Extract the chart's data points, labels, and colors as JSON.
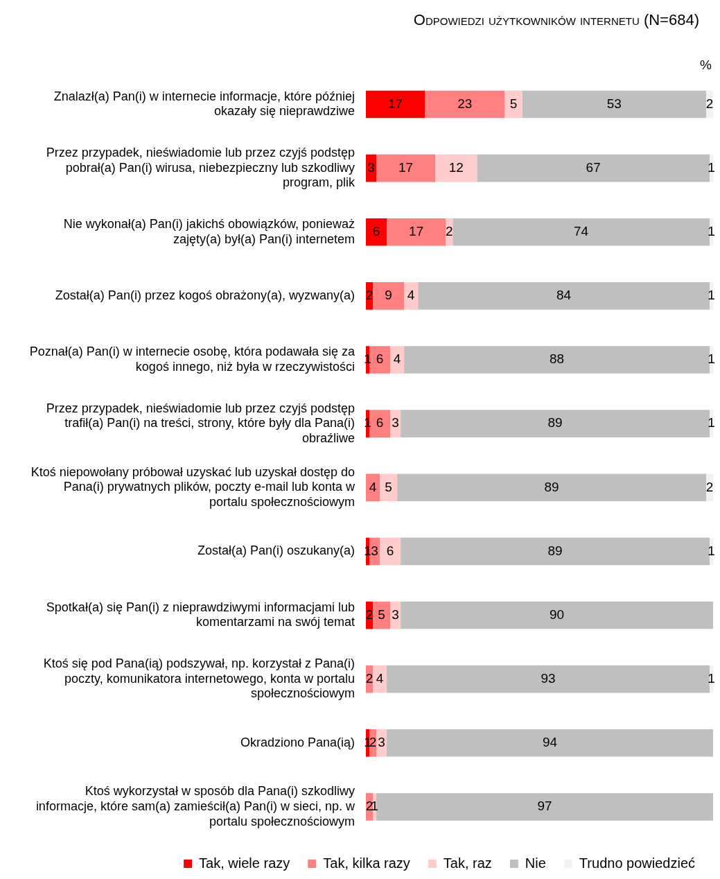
{
  "chart_data": {
    "type": "bar",
    "orientation": "horizontal",
    "stacked": true,
    "title": "Odpowiedzi użytkowników internetu (N=684)",
    "annotations": [
      "%"
    ],
    "categories": [
      "Znalazł(a) Pan(i) w internecie informacje, które później okazały się nieprawdziwe",
      "Przez przypadek, nieświadomie lub przez czyjś podstęp pobrał(a) Pan(i) wirusa, niebezpieczny lub szkodliwy program, plik",
      "Nie wykonał(a) Pan(i) jakichś obowiązków, ponieważ zajęty(a) był(a) Pan(i) internetem",
      "Został(a) Pan(i) przez kogoś obrażony(a), wyzwany(a)",
      "Poznał(a) Pan(i) w internecie osobę, która podawała się za kogoś innego, niż była w rzeczywistości",
      "Przez przypadek, nieświadomie lub przez czyjś podstęp trafił(a) Pan(i) na treści, strony, które były dla Pana(i) obraźliwe",
      "Ktoś niepowołany próbował uzyskać lub uzyskał dostęp do Pana(i) prywatnych plików, poczty e-mail lub konta w portalu społecznościowym",
      "Został(a) Pan(i) oszukany(a)",
      "Spotkał(a) się Pan(i) z nieprawdziwymi informacjami lub komentarzami na swój temat",
      "Ktoś się pod Pana(ią) podszywał, np. korzystał z Pana(i) poczty, komunikatora internetowego, konta w portalu społecznościowym",
      "Okradziono Pana(ią)",
      "Ktoś wykorzystał w sposób dla Pana(i) szkodliwy informacje, które sam(a) zamieścił(a) Pan(i) w sieci, np. w portalu społecznościowym"
    ],
    "series": [
      {
        "name": "Tak, wiele razy",
        "color": "#ff0000",
        "values": [
          17,
          3,
          6,
          2,
          1,
          1,
          null,
          1,
          2,
          null,
          1,
          null
        ]
      },
      {
        "name": "Tak, kilka razy",
        "color": "#ff8080",
        "values": [
          23,
          17,
          17,
          9,
          6,
          6,
          4,
          3,
          5,
          2,
          2,
          2
        ]
      },
      {
        "name": "Tak, raz",
        "color": "#ffcccc",
        "values": [
          5,
          12,
          2,
          4,
          4,
          3,
          5,
          6,
          3,
          4,
          3,
          1
        ]
      },
      {
        "name": "Nie",
        "color": "#bfbfbf",
        "values": [
          53,
          67,
          74,
          84,
          88,
          89,
          89,
          89,
          90,
          93,
          94,
          97
        ]
      },
      {
        "name": "Trudno powiedzieć",
        "color": "#f2f2f2",
        "values": [
          2,
          1,
          1,
          1,
          1,
          1,
          2,
          1,
          null,
          1,
          null,
          null
        ]
      }
    ],
    "xlim": [
      0,
      100
    ],
    "tick_labels": "y",
    "grid": false,
    "legend": "bottom",
    "data_labels": true
  }
}
